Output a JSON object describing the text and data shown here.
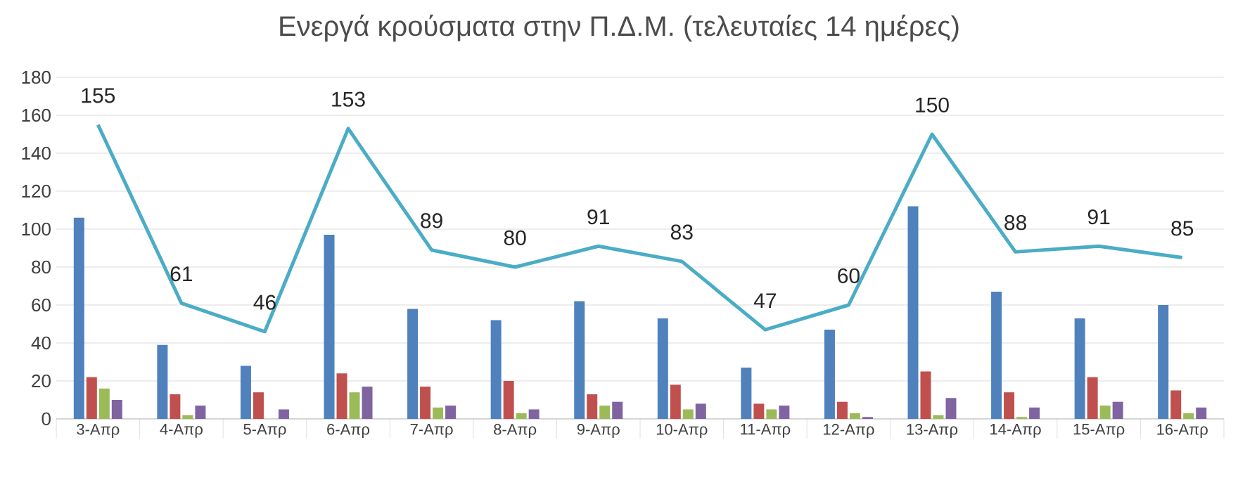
{
  "chart_data": {
    "type": "bar",
    "title": "Ενεργά κρούσματα στην Π.Δ.Μ. (τελευταίες 14 ημέρες)",
    "categories": [
      "3-Απρ",
      "4-Απρ",
      "5-Απρ",
      "6-Απρ",
      "7-Απρ",
      "8-Απρ",
      "9-Απρ",
      "10-Απρ",
      "11-Απρ",
      "12-Απρ",
      "13-Απρ",
      "14-Απρ",
      "15-Απρ",
      "16-Απρ"
    ],
    "series": [
      {
        "color": "#4f81bd",
        "values": [
          106,
          39,
          28,
          97,
          58,
          52,
          62,
          53,
          27,
          47,
          112,
          67,
          53,
          60
        ]
      },
      {
        "color": "#c0504d",
        "values": [
          22,
          13,
          14,
          24,
          17,
          20,
          13,
          18,
          8,
          9,
          25,
          14,
          22,
          15
        ]
      },
      {
        "color": "#9bbb59",
        "values": [
          16,
          2,
          0,
          14,
          6,
          3,
          7,
          5,
          5,
          3,
          2,
          1,
          7,
          3
        ]
      },
      {
        "color": "#8064a2",
        "values": [
          10,
          7,
          5,
          17,
          7,
          5,
          9,
          8,
          7,
          1,
          11,
          6,
          9,
          6
        ]
      },
      {
        "type": "line",
        "color": "#4bacc6",
        "values": [
          155,
          61,
          46,
          153,
          89,
          80,
          91,
          83,
          47,
          60,
          150,
          88,
          91,
          85
        ],
        "value_labels": [
          "155",
          "61",
          "46",
          "153",
          "89",
          "80",
          "91",
          "83",
          "47",
          "60",
          "150",
          "88",
          "91",
          "85"
        ]
      }
    ],
    "ylim": [
      0,
      180
    ],
    "yticks": [
      0,
      20,
      40,
      60,
      80,
      100,
      120,
      140,
      160,
      180
    ],
    "grid": "y"
  }
}
